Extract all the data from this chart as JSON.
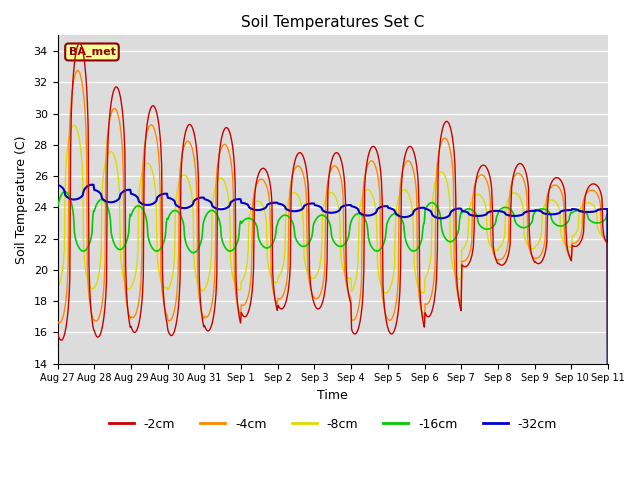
{
  "title": "Soil Temperatures Set C",
  "xlabel": "Time",
  "ylabel": "Soil Temperature (C)",
  "ylim": [
    14,
    35
  ],
  "yticks": [
    14,
    16,
    18,
    20,
    22,
    24,
    26,
    28,
    30,
    32,
    34
  ],
  "xlabels": [
    "Aug 27",
    "Aug 28",
    "Aug 29",
    "Aug 30",
    "Aug 31",
    "Sep 1",
    "Sep 2",
    "Sep 3",
    "Sep 4",
    "Sep 5",
    "Sep 6",
    "Sep 7",
    "Sep 8",
    "Sep 9",
    "Sep 10",
    "Sep 11"
  ],
  "colors": {
    "-2cm": "#cc0000",
    "-4cm": "#ff8800",
    "-8cm": "#dddd00",
    "-16cm": "#00cc00",
    "-32cm": "#0000cc"
  },
  "legend_order": [
    "-2cm",
    "-4cm",
    "-8cm",
    "-16cm",
    "-32cm"
  ],
  "annotation_text": "BA_met",
  "annotation_color": "#8b0000",
  "annotation_bg": "#ffff99",
  "background_color": "#dcdcdc",
  "grid_color": "#ffffff",
  "n_days": 15,
  "points_per_day": 48
}
